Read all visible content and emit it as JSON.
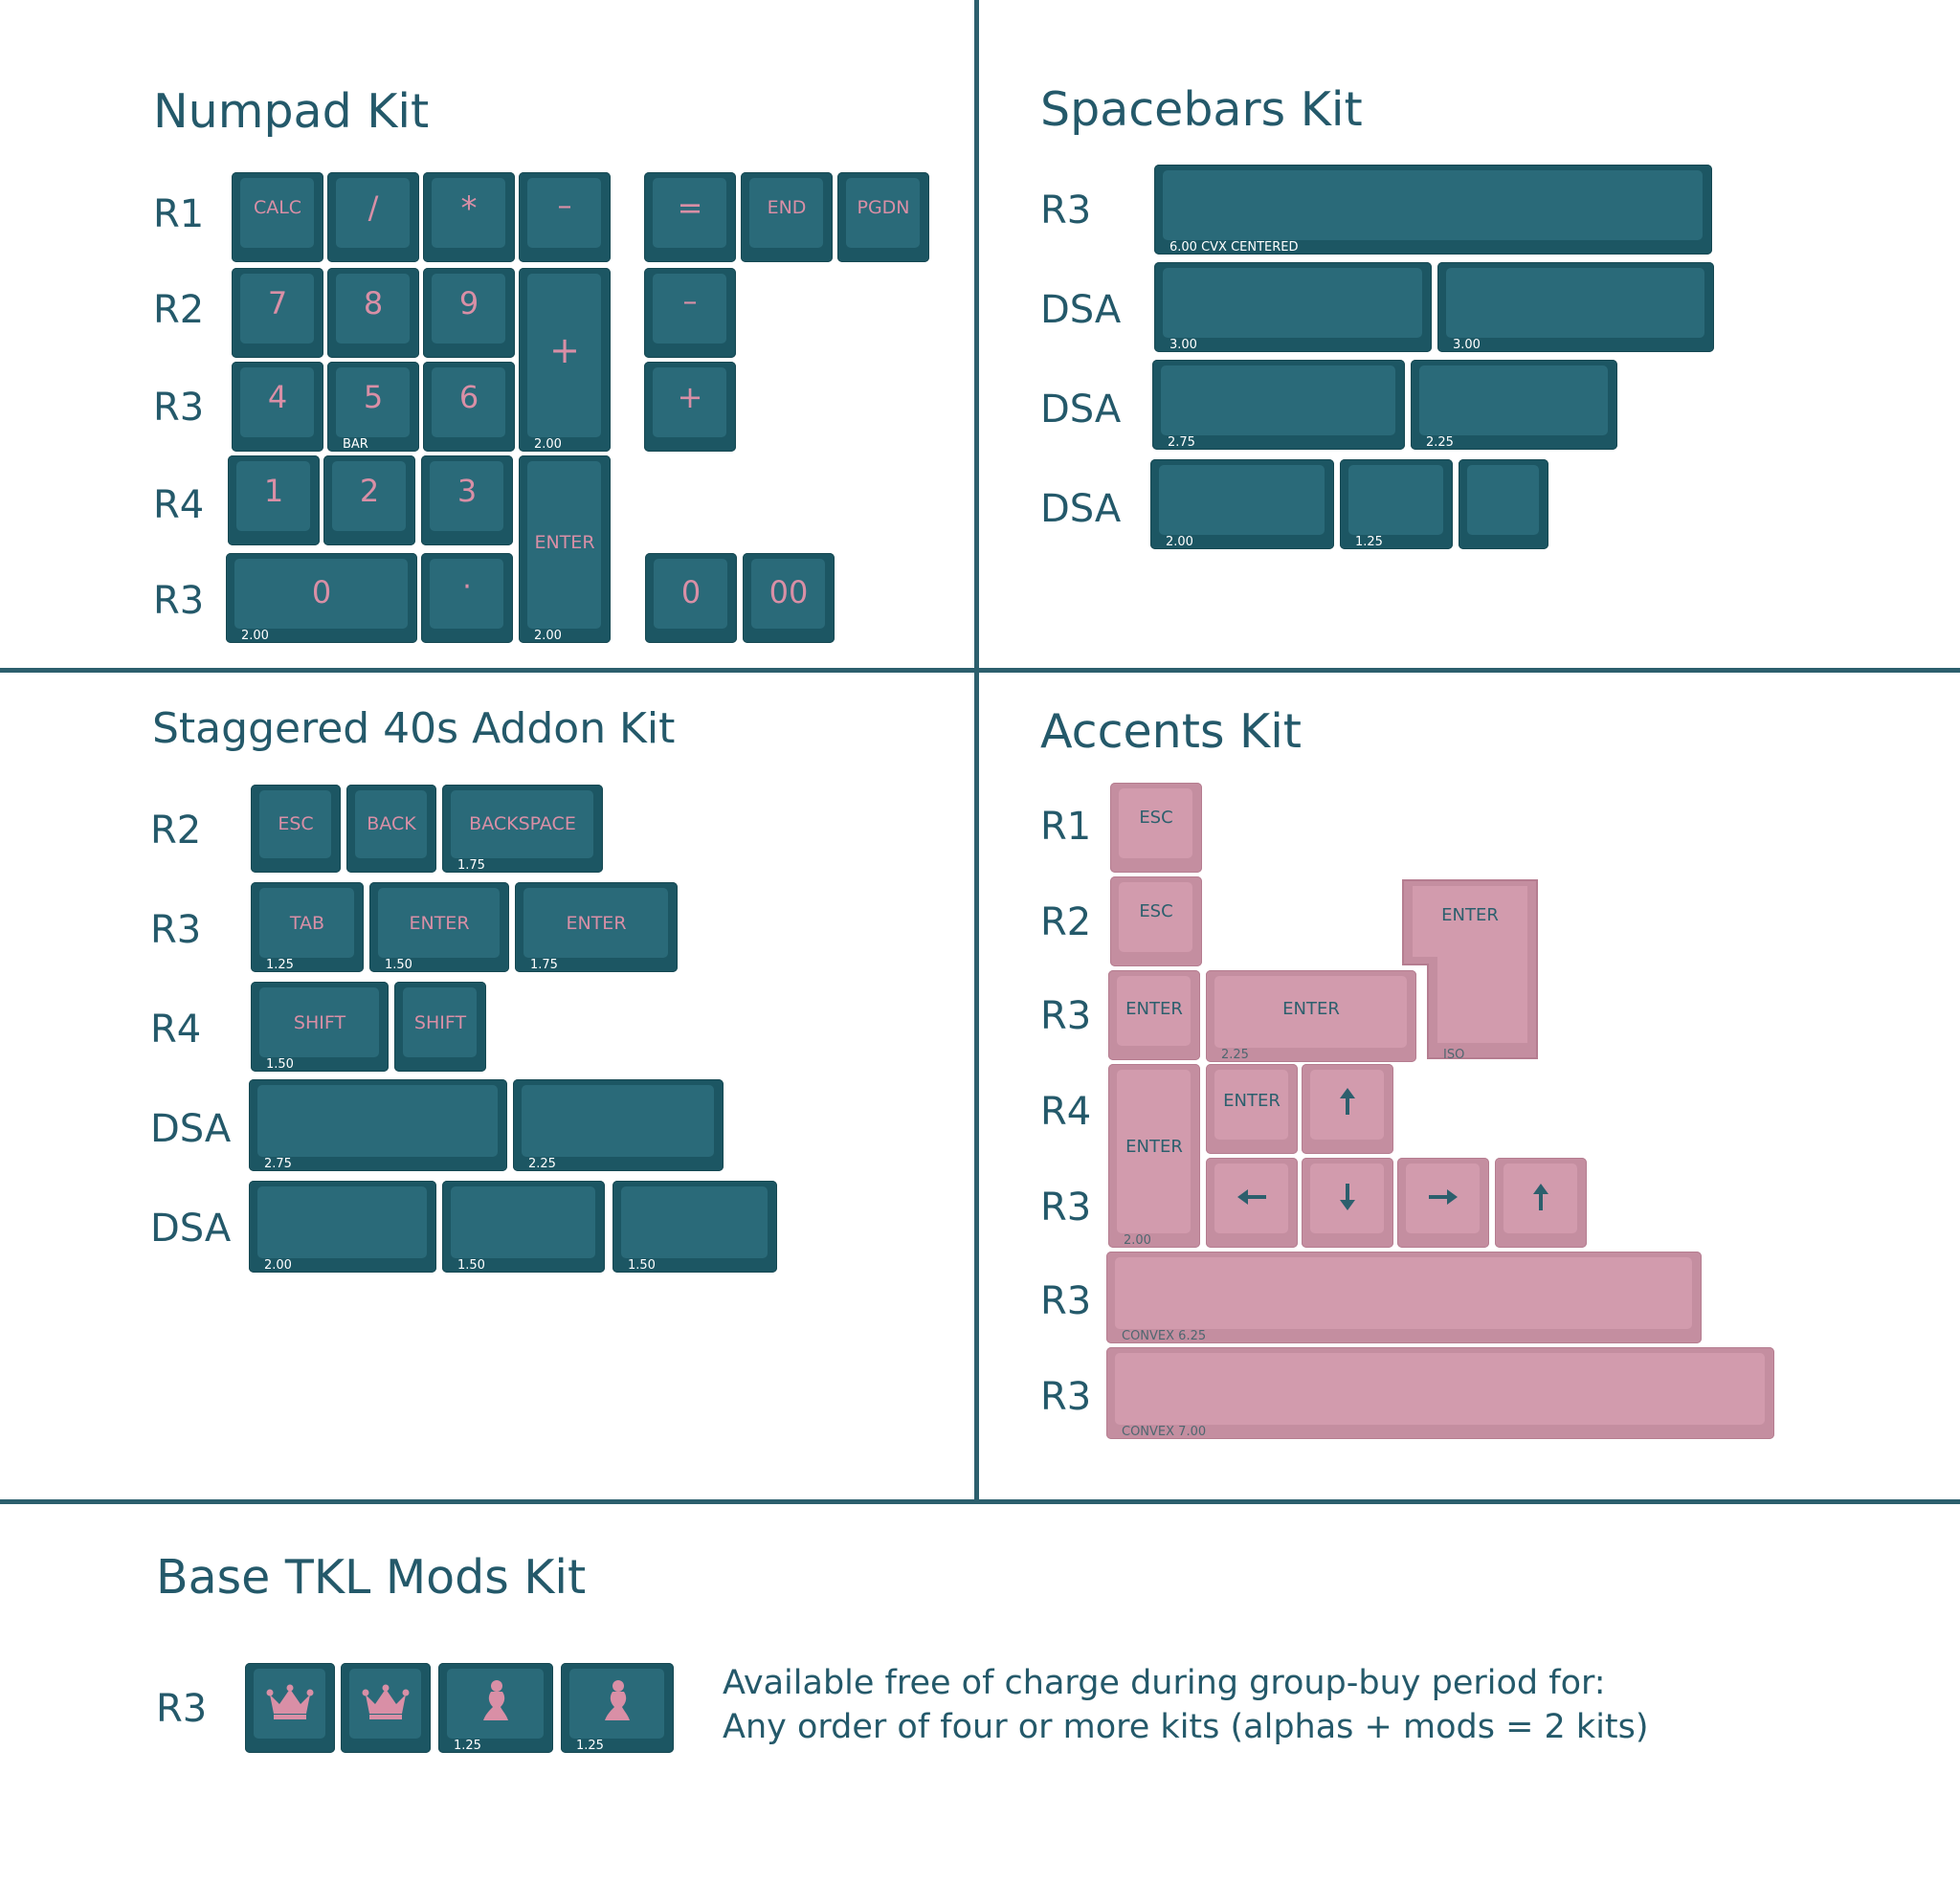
{
  "colors": {
    "teal_key": "#1c5663",
    "teal_face": "#2a6a79",
    "pink_key": "#c48ea0",
    "pink_face": "#d29bad",
    "text": "#24596a",
    "pink_legend": "#d98fa6"
  },
  "numpad": {
    "title": "Numpad Kit",
    "rows": [
      "R1",
      "R2",
      "R3",
      "R4",
      "R3"
    ],
    "keys": {
      "calc": "CALC",
      "slash": "/",
      "star": "*",
      "minus": "–",
      "equals": "=",
      "end": "END",
      "pgdn": "PGDN",
      "n7": "7",
      "n8": "8",
      "n9": "9",
      "plus_tall": "+",
      "minus2": "–",
      "n4": "4",
      "n5": "5",
      "n6": "6",
      "plus2": "+",
      "n1": "1",
      "n2": "2",
      "n3": "3",
      "enter": "ENTER",
      "zero_wide": "0",
      "dot": "·",
      "zero": "0",
      "double_zero": "00"
    },
    "sizes": {
      "bar": "BAR",
      "plus_200": "2.00",
      "zero_200": "2.00",
      "enter_200": "2.00"
    }
  },
  "spacebars": {
    "title": "Spacebars Kit",
    "rows": [
      "R3",
      "DSA",
      "DSA",
      "DSA"
    ],
    "sizes": [
      "6.00 CVX CENTERED",
      "3.00",
      "3.00",
      "2.75",
      "2.25",
      "2.00",
      "1.25"
    ]
  },
  "staggered": {
    "title": "Staggered 40s Addon Kit",
    "rows": [
      "R2",
      "R3",
      "R4",
      "DSA",
      "DSA"
    ],
    "keys": {
      "esc": "ESC",
      "back": "BACK",
      "backspace": "BACKSPACE",
      "tab": "TAB",
      "enter150": "ENTER",
      "enter175": "ENTER",
      "shift150": "SHIFT",
      "shift": "SHIFT"
    },
    "sizes": [
      "1.75",
      "1.25",
      "1.50",
      "1.75",
      "1.50",
      "2.75",
      "2.25",
      "2.00",
      "1.50",
      "1.50"
    ]
  },
  "accents": {
    "title": "Accents Kit",
    "rows": [
      "R1",
      "R2",
      "R3",
      "R4",
      "R3",
      "R3",
      "R3"
    ],
    "keys": {
      "esc1": "ESC",
      "esc2": "ESC",
      "enter_iso": "ENTER",
      "enter_r3": "ENTER",
      "enter_225": "ENTER",
      "enter_r4": "ENTER",
      "enter_tall": "ENTER"
    },
    "sizes": {
      "iso": "ISO",
      "enter_225": "2.25",
      "enter_tall": "2.00",
      "convex625": "CONVEX 6.25",
      "convex700": "CONVEX 7.00"
    },
    "arrow_icons": [
      "arrow-up-icon",
      "arrow-left-icon",
      "arrow-down-icon",
      "arrow-right-icon",
      "arrow-up-icon"
    ]
  },
  "base_tkl": {
    "title": "Base TKL Mods Kit",
    "row": "R3",
    "icons": [
      "crown-icon",
      "crown-icon",
      "mermaid-icon",
      "mermaid-icon"
    ],
    "sizes": [
      "1.25",
      "1.25"
    ],
    "note_line1": "Available free of charge during group-buy period for:",
    "note_line2": "Any order of four or more kits (alphas + mods = 2 kits)"
  }
}
